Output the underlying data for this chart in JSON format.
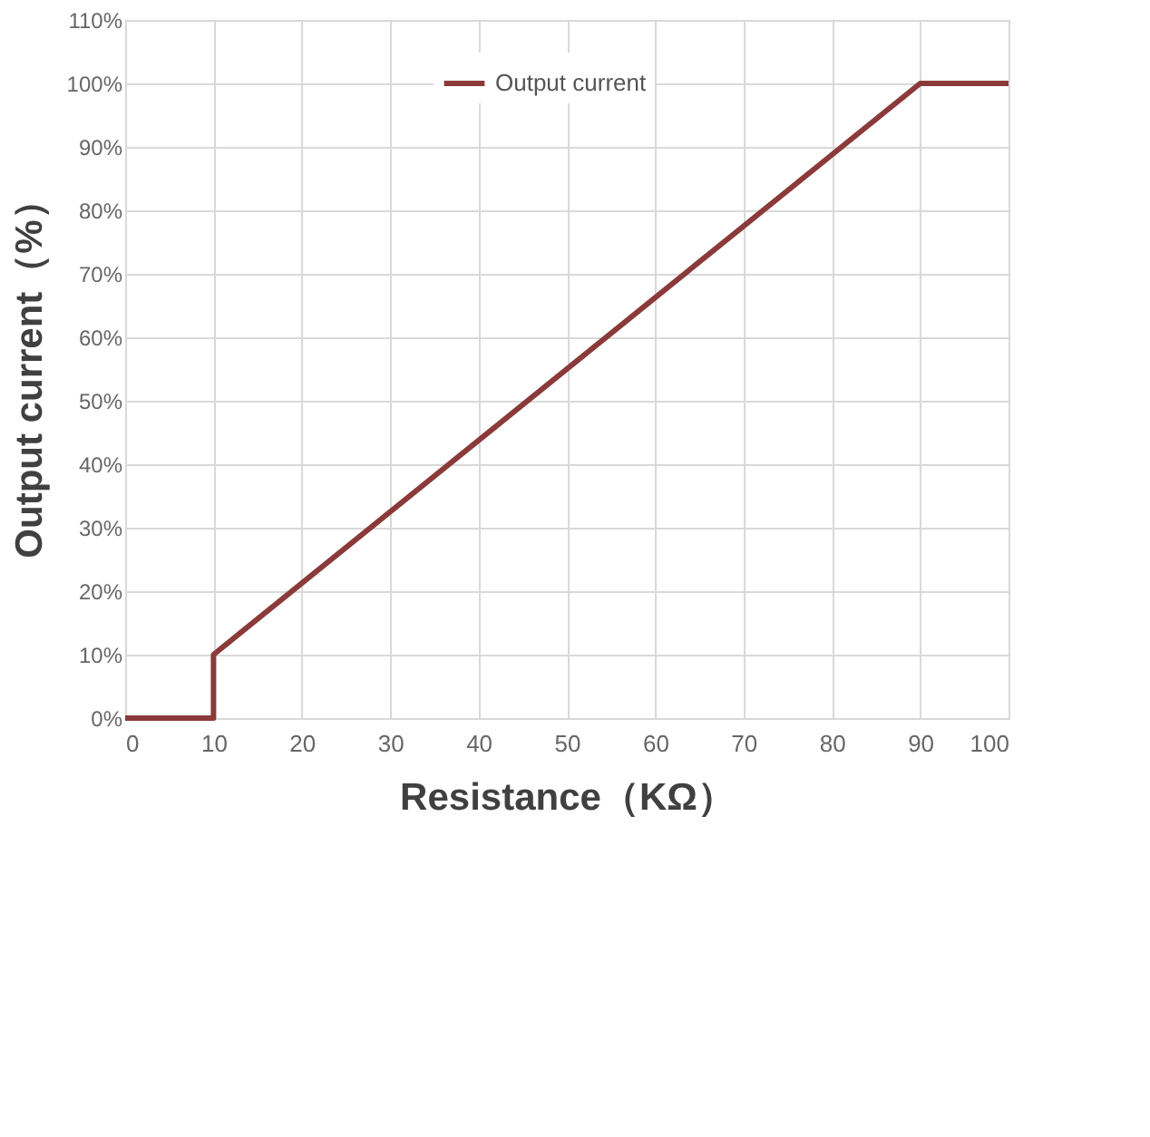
{
  "chart_data": {
    "type": "line",
    "xlabel": "Resistance（KΩ）",
    "ylabel": "Output current（%）",
    "x": [
      0,
      10,
      10,
      90,
      100
    ],
    "series": [
      {
        "name": "Output current",
        "color": "#8b3a3a",
        "values": [
          0,
          0,
          10,
          100,
          100
        ]
      }
    ],
    "xlim": [
      0,
      100
    ],
    "xticks": [
      0,
      10,
      20,
      30,
      40,
      50,
      60,
      70,
      80,
      90,
      100
    ],
    "ylim": [
      0,
      110
    ],
    "yticks": [
      {
        "value": 0,
        "label": "0%"
      },
      {
        "value": 10,
        "label": "10%"
      },
      {
        "value": 20,
        "label": "20%"
      },
      {
        "value": 30,
        "label": "30%"
      },
      {
        "value": 40,
        "label": "40%"
      },
      {
        "value": 50,
        "label": "50%"
      },
      {
        "value": 60,
        "label": "60%"
      },
      {
        "value": 70,
        "label": "70%"
      },
      {
        "value": 80,
        "label": "80%"
      },
      {
        "value": 90,
        "label": "90%"
      },
      {
        "value": 100,
        "label": "100%"
      },
      {
        "value": 110,
        "label": "110%"
      }
    ],
    "grid": true,
    "legend": "top",
    "marker": "none",
    "line_style": "solid"
  }
}
